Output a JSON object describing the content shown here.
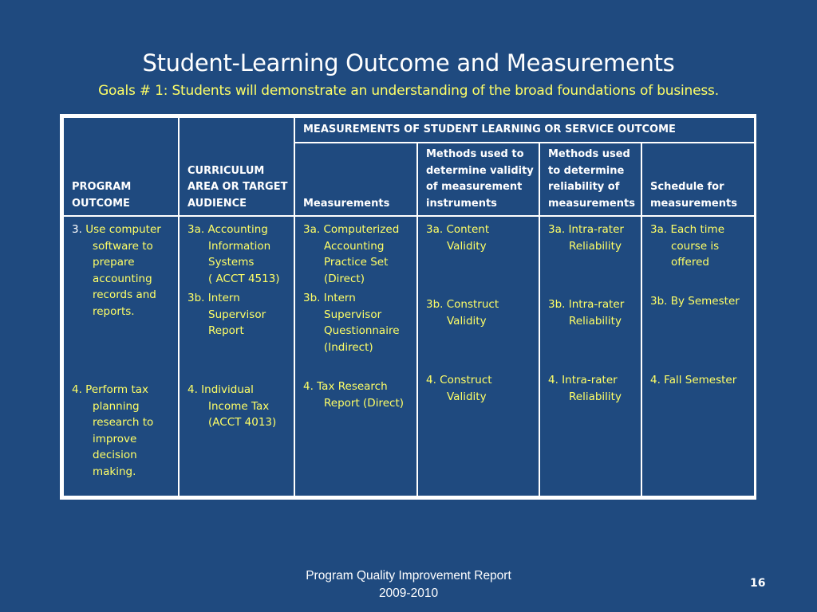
{
  "title": "Student-Learning Outcome and Measurements",
  "subtitle": "Goals # 1:  Students will demonstrate an understanding of the broad foundations of business.",
  "table": {
    "group_header": "MEASUREMENTS OF STUDENT LEARNING OR SERVICE OUTCOME",
    "headers": {
      "program_outcome": [
        "PROGRAM",
        "OUTCOME"
      ],
      "curriculum": [
        "CURRICULUM",
        "AREA OR TARGET",
        "AUDIENCE"
      ],
      "measurements": [
        "Measurements"
      ],
      "validity": [
        "Methods used to",
        "determine validity",
        "of measurement",
        "instruments"
      ],
      "reliability": [
        "Methods used",
        "to determine",
        "reliability of",
        "measurements"
      ],
      "schedule": [
        "Schedule for",
        "measurements"
      ]
    },
    "outcome_3": {
      "number": "3.",
      "text_first": "Use computer",
      "text_rest": [
        "software to",
        "prepare",
        "accounting",
        "records and",
        "reports."
      ]
    },
    "outcome_4": {
      "first": "4.  Perform tax",
      "rest": [
        "planning",
        "research to",
        "improve",
        "decision",
        "making."
      ]
    },
    "curriculum_3a": {
      "first": "3a. Accounting",
      "rest": [
        "Information",
        "Systems",
        "( ACCT 4513)"
      ]
    },
    "curriculum_3b": {
      "first": "3b. Intern",
      "rest": [
        "Supervisor",
        "Report"
      ]
    },
    "curriculum_4": {
      "first": "4.  Individual",
      "rest": [
        "Income Tax",
        "(ACCT 4013)"
      ]
    },
    "measurement_3a": {
      "first": "3a.  Computerized",
      "rest": [
        "Accounting",
        "Practice Set",
        "(Direct)"
      ]
    },
    "measurement_3b": {
      "first": "3b. Intern",
      "rest": [
        "Supervisor",
        "Questionnaire",
        "(Indirect)"
      ]
    },
    "measurement_4": {
      "first": "4.  Tax Research",
      "rest": [
        "Report (Direct)"
      ]
    },
    "validity_3a": {
      "first": "3a.   Content",
      "rest": [
        "Validity"
      ]
    },
    "validity_3b": {
      "first": "3b. Construct",
      "rest": [
        "Validity"
      ]
    },
    "validity_4": {
      "first": "4. Construct",
      "rest": [
        "Validity"
      ]
    },
    "reliability_3a": {
      "first": "3a.  Intra-rater",
      "rest": [
        "Reliability"
      ]
    },
    "reliability_3b": {
      "first": "3b.  Intra-rater",
      "rest": [
        "Reliability"
      ]
    },
    "reliability_4": {
      "first": "4.  Intra-rater",
      "rest": [
        "Reliability"
      ]
    },
    "schedule_3a": {
      "first": "3a.  Each time",
      "rest": [
        "course is",
        "offered"
      ]
    },
    "schedule_3b": {
      "first": "3b. By  Semester",
      "rest": []
    },
    "schedule_4": {
      "first": "4.  Fall Semester",
      "rest": []
    }
  },
  "footer": {
    "line1": "Program Quality Improvement Report",
    "line2": "2009-2010"
  },
  "page_number": "16",
  "colors": {
    "background": "#1f4a7f",
    "title": "#ffffff",
    "subtitle": "#ffff66",
    "table_text": "#ffff66",
    "border": "#ffffff"
  }
}
